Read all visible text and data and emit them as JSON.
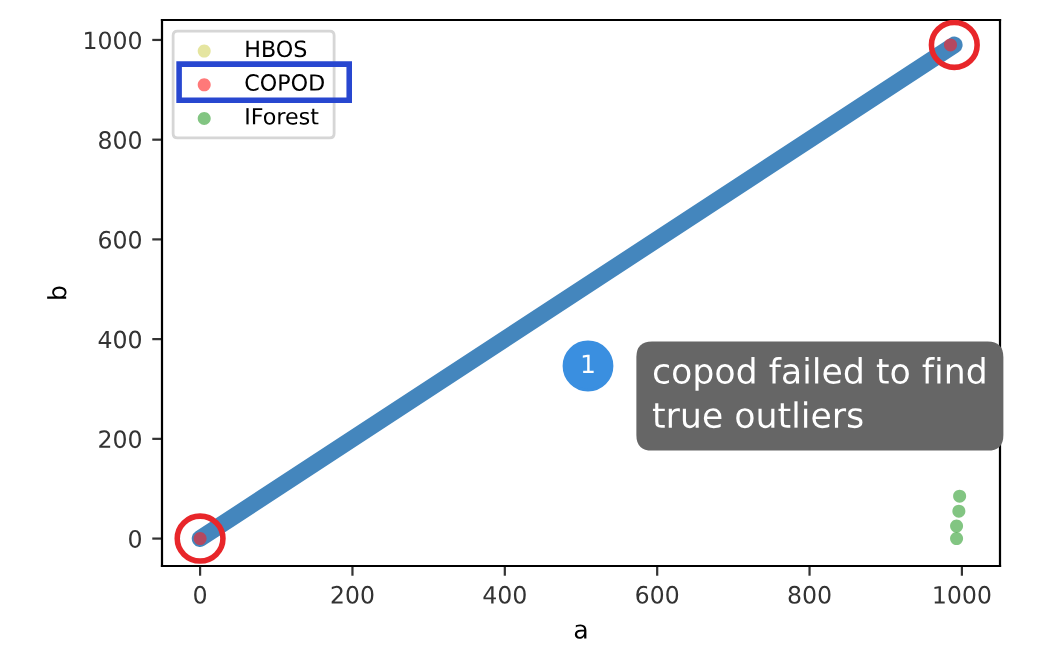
{
  "chart_data": {
    "type": "scatter",
    "xlabel": "a",
    "ylabel": "b",
    "xlim": [
      -50,
      1050
    ],
    "ylim": [
      -55,
      1040
    ],
    "xticks": [
      0,
      200,
      400,
      600,
      800,
      1000
    ],
    "yticks": [
      0,
      200,
      400,
      600,
      800,
      1000
    ],
    "grid": false,
    "legend": "top left",
    "marker": "circle",
    "series": [
      {
        "type": "line",
        "color": "#3a80b9",
        "x": [
          0,
          990
        ],
        "values": [
          0,
          990
        ]
      },
      {
        "name": "HBOS",
        "color": "#d4d460"
      },
      {
        "name": "COPOD",
        "color": "#ff2020",
        "x": [
          0,
          985
        ],
        "values": [
          0,
          990
        ]
      },
      {
        "name": "IForest",
        "color": "#2e9e2e",
        "x": [
          993,
          993,
          996,
          997
        ],
        "values": [
          0,
          25,
          55,
          85
        ]
      }
    ],
    "annotations": [
      "1",
      "copod failed to find true outliers"
    ]
  }
}
